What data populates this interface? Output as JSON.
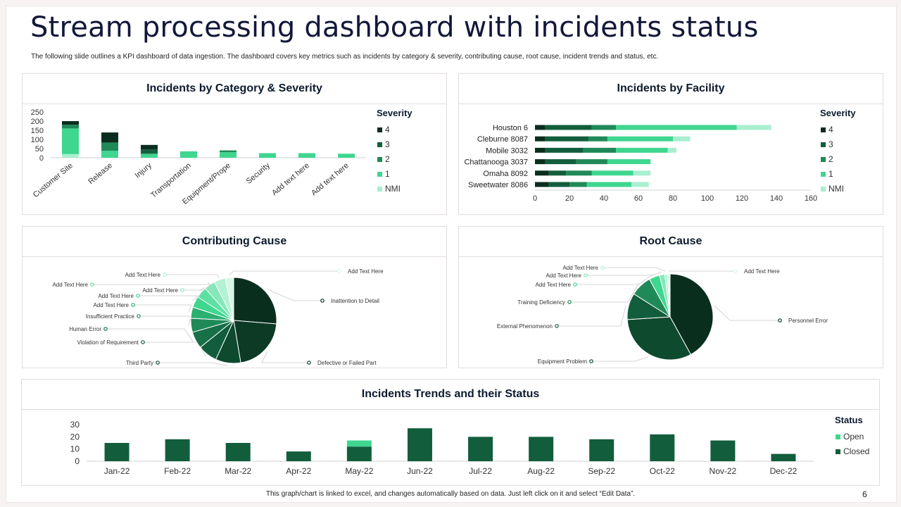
{
  "page": {
    "title": "Stream processing dashboard with incidents status",
    "subtitle": "The following slide outlines a KPI dashboard of data ingestion. The dashboard covers key metrics such as incidents by category & severity, contributing cause, root cause, incident trends and status, etc.",
    "footer": "This graph/chart is linked to excel, and changes automatically based on data. Just left click on it and select “Edit Data”.",
    "page_number": "6"
  },
  "colors": {
    "NMI": "#a8efd0",
    "1": "#3fd68f",
    "2": "#1f8a58",
    "3": "#125e3c",
    "4": "#0a2e1e"
  },
  "chart_data": [
    {
      "id": "category",
      "type": "bar",
      "stacked": true,
      "title": "Incidents by Category & Severity",
      "categories": [
        "Customer Site",
        "Release",
        "Injury",
        "Transportation",
        "Equipment/Prope",
        "Security",
        "Add text here",
        "Add text here"
      ],
      "series": [
        {
          "name": "NMI",
          "values": [
            20,
            0,
            0,
            0,
            0,
            0,
            0,
            0
          ]
        },
        {
          "name": "1",
          "values": [
            140,
            38,
            20,
            35,
            30,
            25,
            25,
            22
          ]
        },
        {
          "name": "2",
          "values": [
            20,
            45,
            5,
            0,
            10,
            0,
            0,
            0
          ]
        },
        {
          "name": "3",
          "values": [
            0,
            0,
            20,
            0,
            0,
            0,
            0,
            0
          ]
        },
        {
          "name": "4",
          "values": [
            20,
            55,
            25,
            0,
            0,
            0,
            0,
            0
          ]
        }
      ],
      "ylim": [
        0,
        250
      ],
      "yticks": [
        0,
        50,
        100,
        150,
        200,
        250
      ],
      "legend_title": "Severity",
      "legend": [
        "4",
        "3",
        "2",
        "1",
        "NMI"
      ]
    },
    {
      "id": "facility",
      "type": "bar",
      "orientation": "horizontal",
      "stacked": true,
      "title": "Incidents by Facility",
      "categories": [
        "Houston 6",
        "Cleburne 8087",
        "Mobile 3032",
        "Chattanooga 3037",
        "Omaha 8092",
        "Sweetwater 8086"
      ],
      "series": [
        {
          "name": "4",
          "values": [
            6,
            6,
            6,
            6,
            8,
            8
          ]
        },
        {
          "name": "3",
          "values": [
            27,
            25,
            22,
            18,
            10,
            12
          ]
        },
        {
          "name": "2",
          "values": [
            14,
            11,
            19,
            18,
            15,
            10
          ]
        },
        {
          "name": "1",
          "values": [
            70,
            38,
            30,
            25,
            24,
            26
          ]
        },
        {
          "name": "NMI",
          "values": [
            20,
            10,
            5,
            0,
            10,
            10
          ]
        }
      ],
      "xlim": [
        0,
        160
      ],
      "xticks": [
        0,
        20,
        40,
        60,
        80,
        100,
        120,
        140,
        160
      ],
      "legend_title": "Severity",
      "legend": [
        "4",
        "3",
        "2",
        "1",
        "NMI"
      ]
    },
    {
      "id": "contributing",
      "type": "pie",
      "title": "Contributing Cause",
      "slices": [
        {
          "label": "Inattention  to Detail",
          "value": 25,
          "color": "#0a2e1e"
        },
        {
          "label": "Defective or Failed Part",
          "value": 20,
          "color": "#0c3a25"
        },
        {
          "label": "Third Party",
          "value": 9,
          "color": "#0e4a2e"
        },
        {
          "label": "Violation of Requirement",
          "value": 7,
          "color": "#125e3c"
        },
        {
          "label": "Human Error",
          "value": 6,
          "color": "#187048"
        },
        {
          "label": "Insufficient  Practice",
          "value": 5,
          "color": "#1f8a58"
        },
        {
          "label": "Add Text Here",
          "value": 4,
          "color": "#2bb071"
        },
        {
          "label": "Add Text Here",
          "value": 4,
          "color": "#3fd68f"
        },
        {
          "label": "Add Text Here",
          "value": 4,
          "color": "#5ee0a2"
        },
        {
          "label": "Add Text Here",
          "value": 4,
          "color": "#85e8b9"
        },
        {
          "label": "Add Text Here",
          "value": 4,
          "color": "#b4f0d3"
        },
        {
          "label": "Add Text Here",
          "value": 3,
          "color": "#d6f7e6"
        }
      ]
    },
    {
      "id": "root",
      "type": "pie",
      "title": "Root Cause",
      "slices": [
        {
          "label": "Personnel  Error",
          "value": 42,
          "color": "#0a2e1e"
        },
        {
          "label": "Equipment  Problem",
          "value": 32,
          "color": "#0e4a2e"
        },
        {
          "label": "External  Phenomenon",
          "value": 10,
          "color": "#125e3c"
        },
        {
          "label": "Training Deficiency",
          "value": 8,
          "color": "#1f8a58"
        },
        {
          "label": "Add Text Here",
          "value": 4,
          "color": "#3fd68f"
        },
        {
          "label": "Add Text Here",
          "value": 2,
          "color": "#85e8b9"
        },
        {
          "label": "Add Text Here",
          "value": 1,
          "color": "#b4f0d3"
        },
        {
          "label": "Add Text Here",
          "value": 1,
          "color": "#d6f7e6"
        }
      ]
    },
    {
      "id": "trends",
      "type": "bar",
      "stacked": true,
      "title": "Incidents Trends and their Status",
      "categories": [
        "Jan-22",
        "Feb-22",
        "Mar-22",
        "Apr-22",
        "May-22",
        "Jun-22",
        "Jul-22",
        "Aug-22",
        "Sep-22",
        "Oct-22",
        "Nov-22",
        "Dec-22"
      ],
      "series": [
        {
          "name": "Closed",
          "values": [
            15,
            18,
            15,
            8,
            12,
            27,
            20,
            20,
            18,
            22,
            17,
            6
          ]
        },
        {
          "name": "Open",
          "values": [
            0,
            0,
            0,
            0,
            5,
            0,
            0,
            0,
            0,
            0,
            0,
            0
          ]
        }
      ],
      "ylim": [
        0,
        30
      ],
      "yticks": [
        0,
        10,
        20,
        30
      ],
      "legend_title": "Status",
      "legend": [
        "Open",
        "Closed"
      ],
      "series_colors": {
        "Open": "#3fd68f",
        "Closed": "#125e3c"
      }
    }
  ]
}
